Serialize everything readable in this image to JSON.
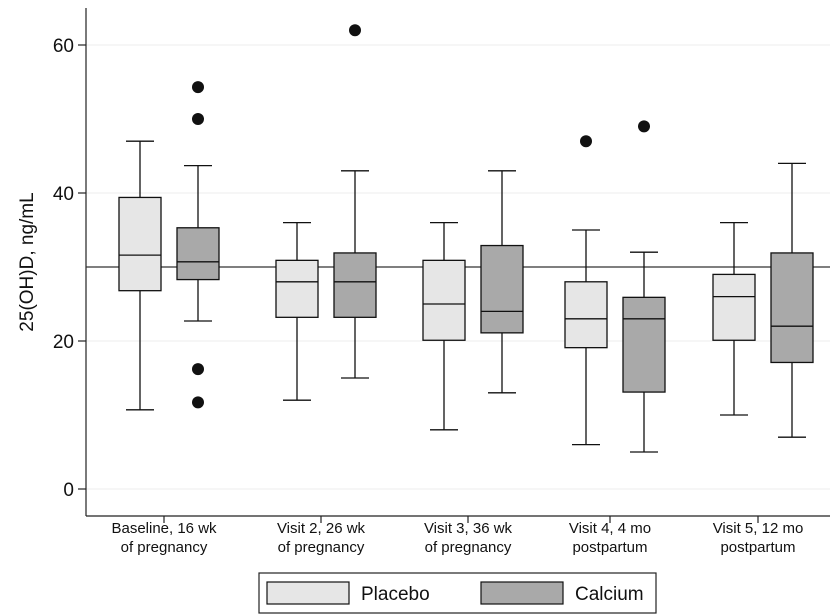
{
  "chart_data": {
    "type": "box",
    "ylabel": "25(OH)D, ng/mL",
    "ylim": [
      -4,
      65
    ],
    "yticks": [
      0,
      20,
      40,
      60
    ],
    "grid": true,
    "reference_line": 30,
    "legend_position": "bottom",
    "categories": [
      [
        "Baseline, 16 wk",
        "of pregnancy"
      ],
      [
        "Visit 2, 26 wk",
        "of pregnancy"
      ],
      [
        "Visit 3, 36 wk",
        "of pregnancy"
      ],
      [
        "Visit 4, 4 mo",
        "postpartum"
      ],
      [
        "Visit 5, 12 mo",
        "postpartum"
      ]
    ],
    "series": [
      {
        "name": "Placebo",
        "color": "#e6e6e6",
        "boxes": [
          {
            "min": 10.7,
            "q1": 26.8,
            "median": 31.6,
            "q3": 39.4,
            "max": 47,
            "outliers": []
          },
          {
            "min": 12,
            "q1": 23.2,
            "median": 28,
            "q3": 30.9,
            "max": 36,
            "outliers": []
          },
          {
            "min": 8,
            "q1": 20.1,
            "median": 25,
            "q3": 30.9,
            "max": 36,
            "outliers": []
          },
          {
            "min": 6,
            "q1": 19.1,
            "median": 23,
            "q3": 28,
            "max": 35,
            "outliers": [
              47
            ]
          },
          {
            "min": 10,
            "q1": 20.1,
            "median": 26,
            "q3": 29,
            "max": 36,
            "outliers": []
          }
        ]
      },
      {
        "name": "Calcium",
        "color": "#a9a9a9",
        "boxes": [
          {
            "min": 22.7,
            "q1": 28.3,
            "median": 30.7,
            "q3": 35.3,
            "max": 43.7,
            "outliers": [
              54.3,
              50,
              16.2,
              11.7
            ]
          },
          {
            "min": 15,
            "q1": 23.2,
            "median": 28,
            "q3": 31.9,
            "max": 43,
            "outliers": [
              62
            ]
          },
          {
            "min": 13,
            "q1": 21.1,
            "median": 24,
            "q3": 32.9,
            "max": 43,
            "outliers": []
          },
          {
            "min": 5,
            "q1": 13.1,
            "median": 23,
            "q3": 25.9,
            "max": 32,
            "outliers": [
              49
            ]
          },
          {
            "min": 7,
            "q1": 17.1,
            "median": 22,
            "q3": 31.9,
            "max": 44,
            "outliers": []
          }
        ]
      }
    ]
  }
}
